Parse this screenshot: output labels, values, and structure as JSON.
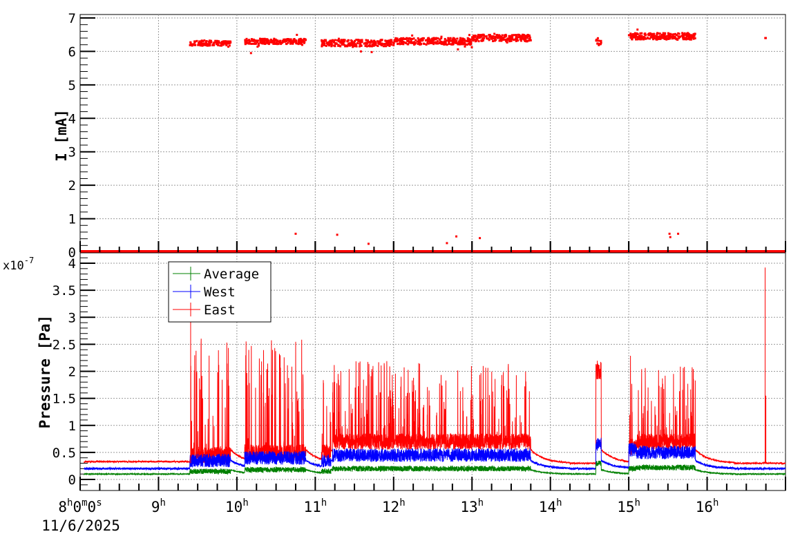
{
  "chart_data": [
    {
      "type": "scatter",
      "name": "current",
      "ylabel": "I [mA]",
      "ylim": [
        0,
        7
      ],
      "yticks": [
        0,
        1,
        2,
        3,
        4,
        5,
        6,
        7
      ],
      "xlim_hours": [
        8,
        17
      ],
      "color": "#ff0000",
      "grid": true,
      "segments": [
        {
          "start": 9.4,
          "end": 9.92,
          "level": 6.25,
          "spread": 0.08
        },
        {
          "start": 10.1,
          "end": 10.88,
          "level": 6.3,
          "spread": 0.08
        },
        {
          "start": 11.08,
          "end": 12.0,
          "level": 6.25,
          "spread": 0.1
        },
        {
          "start": 12.0,
          "end": 13.0,
          "level": 6.3,
          "spread": 0.1
        },
        {
          "start": 13.0,
          "end": 13.75,
          "level": 6.4,
          "spread": 0.1
        },
        {
          "start": 14.58,
          "end": 14.65,
          "level": 6.3,
          "spread": 0.12
        },
        {
          "start": 15.0,
          "end": 15.85,
          "level": 6.45,
          "spread": 0.1
        },
        {
          "start": 16.74,
          "end": 16.75,
          "level": 6.4,
          "spread": 0.0
        }
      ],
      "outliers": [
        [
          10.75,
          0.55
        ],
        [
          11.28,
          0.52
        ],
        [
          11.68,
          0.25
        ],
        [
          12.68,
          0.27
        ],
        [
          12.8,
          0.47
        ],
        [
          13.1,
          0.42
        ],
        [
          15.52,
          0.55
        ],
        [
          15.53,
          0.45
        ],
        [
          15.63,
          0.55
        ],
        [
          10.18,
          5.95
        ],
        [
          11.72,
          5.98
        ]
      ],
      "off_level": 0.03
    },
    {
      "type": "line",
      "name": "pressure",
      "ylabel": "Pressure [Pa]",
      "multiplier": "x10",
      "exponent": "-7",
      "ylim": [
        -0.2,
        4.2
      ],
      "yticks": [
        "0",
        "0.5",
        "1",
        "1.5",
        "2",
        "2.5",
        "3",
        "3.5",
        "4"
      ],
      "ytick_values": [
        0,
        0.5,
        1,
        1.5,
        2,
        2.5,
        3,
        3.5,
        4
      ],
      "legend": [
        {
          "name": "Average",
          "color": "#008000"
        },
        {
          "name": "West",
          "color": "#0000ff"
        },
        {
          "name": "East",
          "color": "#ff0000"
        }
      ],
      "legend_placement": "top-left",
      "grid": true,
      "baseline": {
        "East": 0.3,
        "West": 0.2,
        "Average": 0.1
      },
      "active": [
        {
          "start": 9.4,
          "end": 9.92,
          "east_base": 0.45,
          "east_peak": 2.7,
          "west": 0.3,
          "avg": 0.15
        },
        {
          "start": 10.1,
          "end": 10.88,
          "east_base": 0.5,
          "east_peak": 2.6,
          "west": 0.35,
          "avg": 0.18
        },
        {
          "start": 11.08,
          "end": 11.2,
          "east_base": 0.5,
          "east_peak": 2.1,
          "west": 0.3,
          "avg": 0.15
        },
        {
          "start": 11.22,
          "end": 13.75,
          "east_base": 0.7,
          "east_peak": 2.2,
          "west": 0.4,
          "avg": 0.2
        },
        {
          "start": 14.58,
          "end": 14.65,
          "east_base": 2.0,
          "east_peak": 2.2,
          "west": 0.6,
          "avg": 0.3
        },
        {
          "start": 15.0,
          "end": 15.1,
          "east_base": 0.6,
          "east_peak": 2.3,
          "west": 0.5,
          "avg": 0.2
        },
        {
          "start": 15.1,
          "end": 15.85,
          "east_base": 0.7,
          "east_peak": 2.1,
          "west": 0.45,
          "avg": 0.22
        }
      ],
      "spikes": [
        [
          9.41,
          3.9
        ],
        [
          16.74,
          3.92
        ],
        [
          16.75,
          1.55
        ]
      ]
    },
    {
      "xaxis": {
        "tick_labels": [
          {
            "h": 8,
            "label": "8",
            "sup": "h",
            "rest": "0",
            "sup2": "m",
            "rest2": "0",
            "sup3": "s"
          },
          {
            "h": 9,
            "label": "9"
          },
          {
            "h": 10,
            "label": "10"
          },
          {
            "h": 11,
            "label": "11"
          },
          {
            "h": 12,
            "label": "12"
          },
          {
            "h": 13,
            "label": "13"
          },
          {
            "h": 14,
            "label": "14"
          },
          {
            "h": 15,
            "label": "15"
          },
          {
            "h": 16,
            "label": "16"
          }
        ],
        "date": "11/6/2025",
        "hour_sup": "h"
      }
    }
  ]
}
